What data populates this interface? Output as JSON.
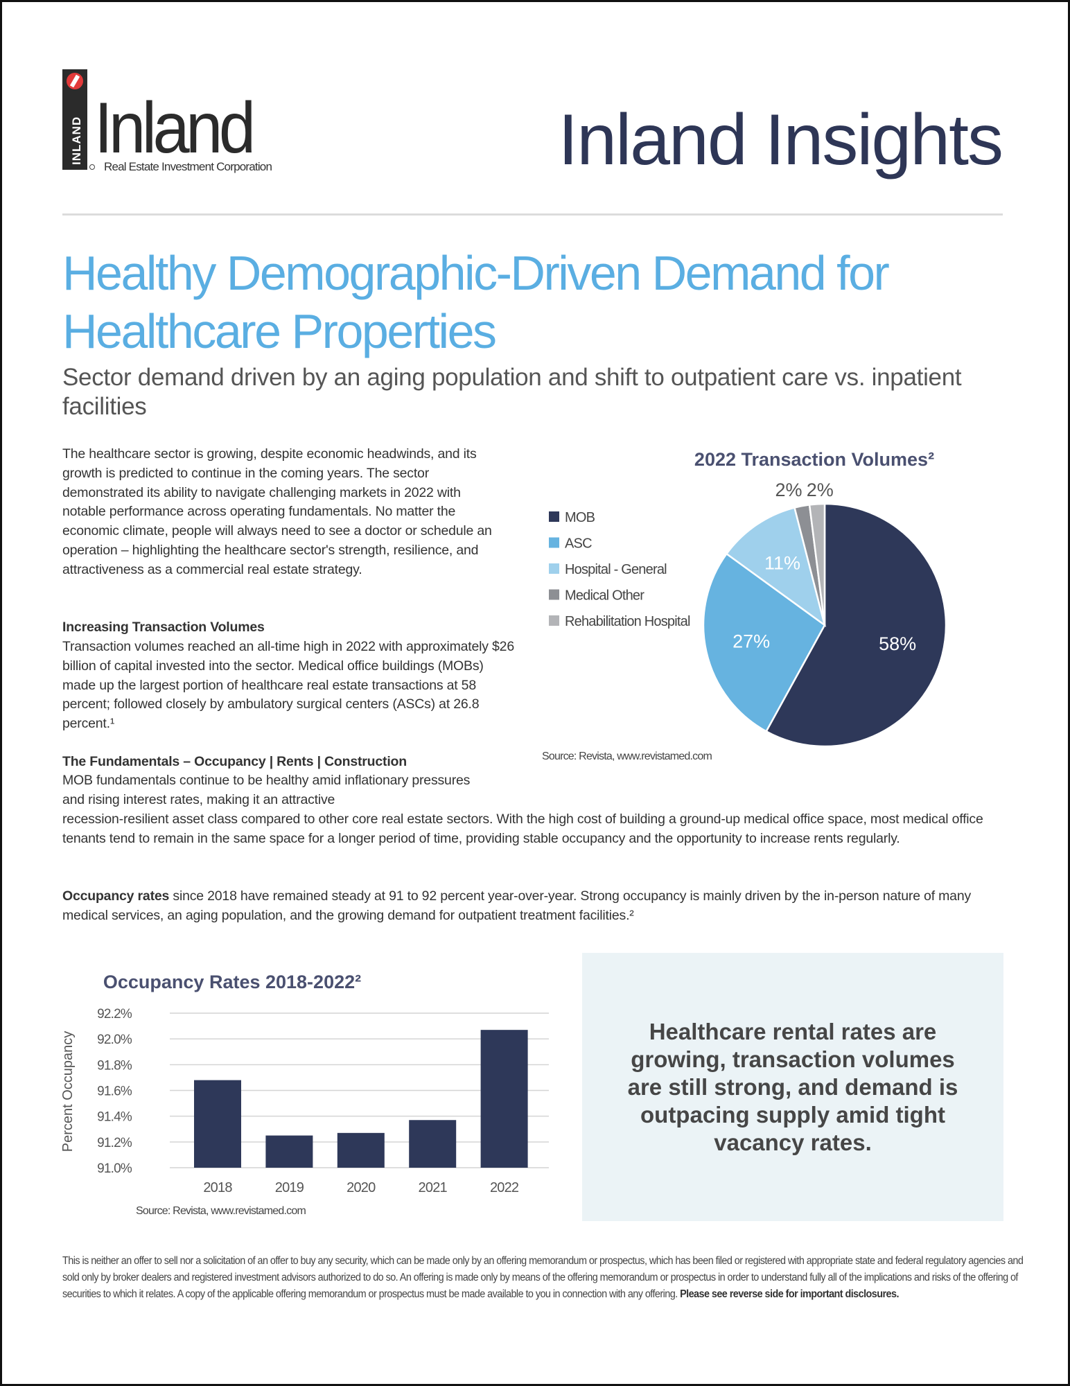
{
  "header": {
    "logo": {
      "vertical_text": "INLAND",
      "wordmark": "Inland",
      "tagline": "Real Estate Investment Corporation"
    },
    "publication": "Inland Insights"
  },
  "article": {
    "title": "Healthy Demographic-Driven Demand for Healthcare Properties",
    "subtitle": "Sector demand driven by an aging population and shift to outpatient care vs. inpatient facilities",
    "intro": "The healthcare sector is growing, despite economic headwinds, and its growth is predicted to continue in the coming years. The sector demonstrated its ability to navigate challenging markets in 2022 with notable performance across operating fundamentals. No matter the economic climate, people will always need to see a doctor or schedule an operation – highlighting the healthcare sector's strength, resilience, and attractiveness as a commercial real estate strategy.",
    "transactions_heading": "Increasing Transaction Volumes",
    "transactions_text": "Transaction volumes reached an all-time high in 2022 with approximately $26 billion of capital invested into the sector. Medical office buildings (MOBs) made up the largest portion of healthcare real estate transactions at 58 percent; followed closely by ambulatory surgical centers (ASCs) at 26.8 percent.¹",
    "fundamentals_heading": "The Fundamentals – Occupancy | Rents | Construction",
    "fundamentals_text_1": "MOB fundamentals continue to be healthy amid inflationary pressures and rising interest rates, making it an attractive",
    "fundamentals_text_2": "recession-resilient asset class compared to other core real estate sectors. With the high cost of building a ground-up medical office space, most medical office tenants tend to remain in the same space for a longer period of time, providing stable occupancy and the opportunity to increase rents regularly.",
    "occupancy_lead": "Occupancy rates",
    "occupancy_text": " since 2018 have remained steady at 91 to 92 percent year-over-year. Strong occupancy is mainly driven by the in-person nature of many medical services, an aging population, and the growing demand for outpatient treatment facilities.²"
  },
  "callout": "Healthcare rental rates are growing, transaction volumes are still strong, and demand is outpacing supply amid tight vacancy rates.",
  "disclaimer": {
    "text": "This is neither an offer to sell nor a solicitation of an offer to buy any security, which can be made only by an offering memorandum or prospectus, which has been filed or registered with appropriate state and federal regulatory agencies and sold only by broker dealers and registered investment advisors authorized to do so. An offering is made only by means of the offering memorandum or prospectus in order to understand fully all of the implications and risks of the offering of securities to which it relates. A copy of the applicable offering memorandum or prospectus must be made available to you in connection with any offering. ",
    "bold": "Please see reverse side for important disclosures."
  },
  "colors": {
    "navy": "#2e3859",
    "blue": "#66b3e0",
    "light_blue": "#9fd0ec",
    "gray": "#8d8f94",
    "light_gray": "#b3b4b7",
    "accent": "#5aaee2"
  },
  "chart_data": [
    {
      "type": "pie",
      "title": "2022 Transaction Volumes²",
      "categories": [
        "MOB",
        "ASC",
        "Hospital - General",
        "Medical Other",
        "Rehabilitation Hospital"
      ],
      "values": [
        58,
        27,
        11,
        2,
        2
      ],
      "labels": [
        "58%",
        "27%",
        "11%",
        "2%",
        "2%"
      ],
      "colors": [
        "#2e3859",
        "#66b3e0",
        "#9fd0ec",
        "#8d8f94",
        "#b3b4b7"
      ],
      "legend": "left",
      "source": "Source: Revista, www.revistamed.com"
    },
    {
      "type": "bar",
      "title": "Occupancy Rates 2018-2022²",
      "categories": [
        "2018",
        "2019",
        "2020",
        "2021",
        "2022"
      ],
      "values": [
        91.68,
        91.25,
        91.27,
        91.37,
        92.07
      ],
      "ylabel": "Percent Occupancy",
      "xlabel": "",
      "ylim": [
        91.0,
        92.2
      ],
      "yticks": [
        "91.0%",
        "91.2%",
        "91.4%",
        "91.6%",
        "91.8%",
        "92.0%",
        "92.2%"
      ],
      "grid": true,
      "color": "#2e3859",
      "source": "Source: Revista, www.revistamed.com"
    }
  ]
}
